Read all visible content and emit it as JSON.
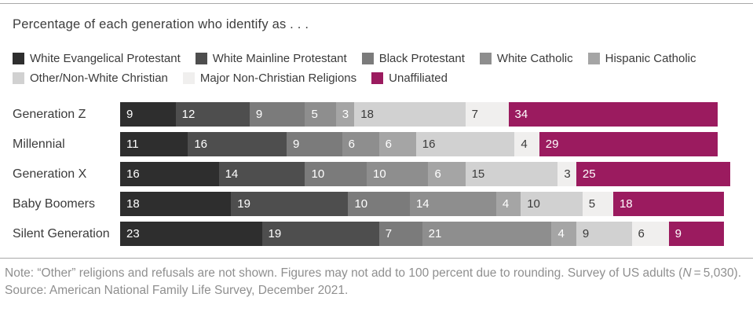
{
  "chart_data": {
    "type": "bar",
    "variant": "horizontal-stacked",
    "title": "Percentage of each generation who identify as . . .",
    "unit": "percent",
    "xlim": [
      0,
      100
    ],
    "grid": false,
    "legend_position": "top",
    "value_labels": "inside-left",
    "categories": [
      "Generation Z",
      "Millennial",
      "Generation X",
      "Baby Boomers",
      "Silent Generation"
    ],
    "series": [
      {
        "name": "White Evangelical Protestant",
        "color": "#2e2e2e",
        "label_color": "#ffffff",
        "values": [
          9,
          11,
          16,
          18,
          23
        ]
      },
      {
        "name": "White Mainline Protestant",
        "color": "#4e4e4e",
        "label_color": "#ffffff",
        "values": [
          12,
          16,
          14,
          19,
          19
        ]
      },
      {
        "name": "Black Protestant",
        "color": "#7b7b7b",
        "label_color": "#ffffff",
        "values": [
          9,
          9,
          10,
          10,
          7
        ]
      },
      {
        "name": "White Catholic",
        "color": "#8e8e8e",
        "label_color": "#ffffff",
        "values": [
          5,
          6,
          10,
          14,
          21
        ]
      },
      {
        "name": "Hispanic Catholic",
        "color": "#a5a5a5",
        "label_color": "#ffffff",
        "values": [
          3,
          6,
          6,
          4,
          4
        ]
      },
      {
        "name": "Other/Non-White Christian",
        "color": "#d1d1d1",
        "label_color": "#3b3b3b",
        "values": [
          18,
          16,
          15,
          10,
          9
        ]
      },
      {
        "name": "Major Non-Christian Religions",
        "color": "#f0efee",
        "label_color": "#3b3b3b",
        "values": [
          7,
          4,
          3,
          5,
          6
        ]
      },
      {
        "name": "Unaffiliated",
        "color": "#9b1b5f",
        "label_color": "#ffffff",
        "values": [
          34,
          29,
          25,
          18,
          9
        ]
      }
    ]
  },
  "note": {
    "before_n": "Note: “Other” religions and refusals are not shown. Figures may not add to 100 percent due to rounding. Survey of US adults (",
    "n_symbol": "N",
    "after_n": " = 5,030)."
  },
  "source": "Source: American National Family Life Survey, December 2021."
}
